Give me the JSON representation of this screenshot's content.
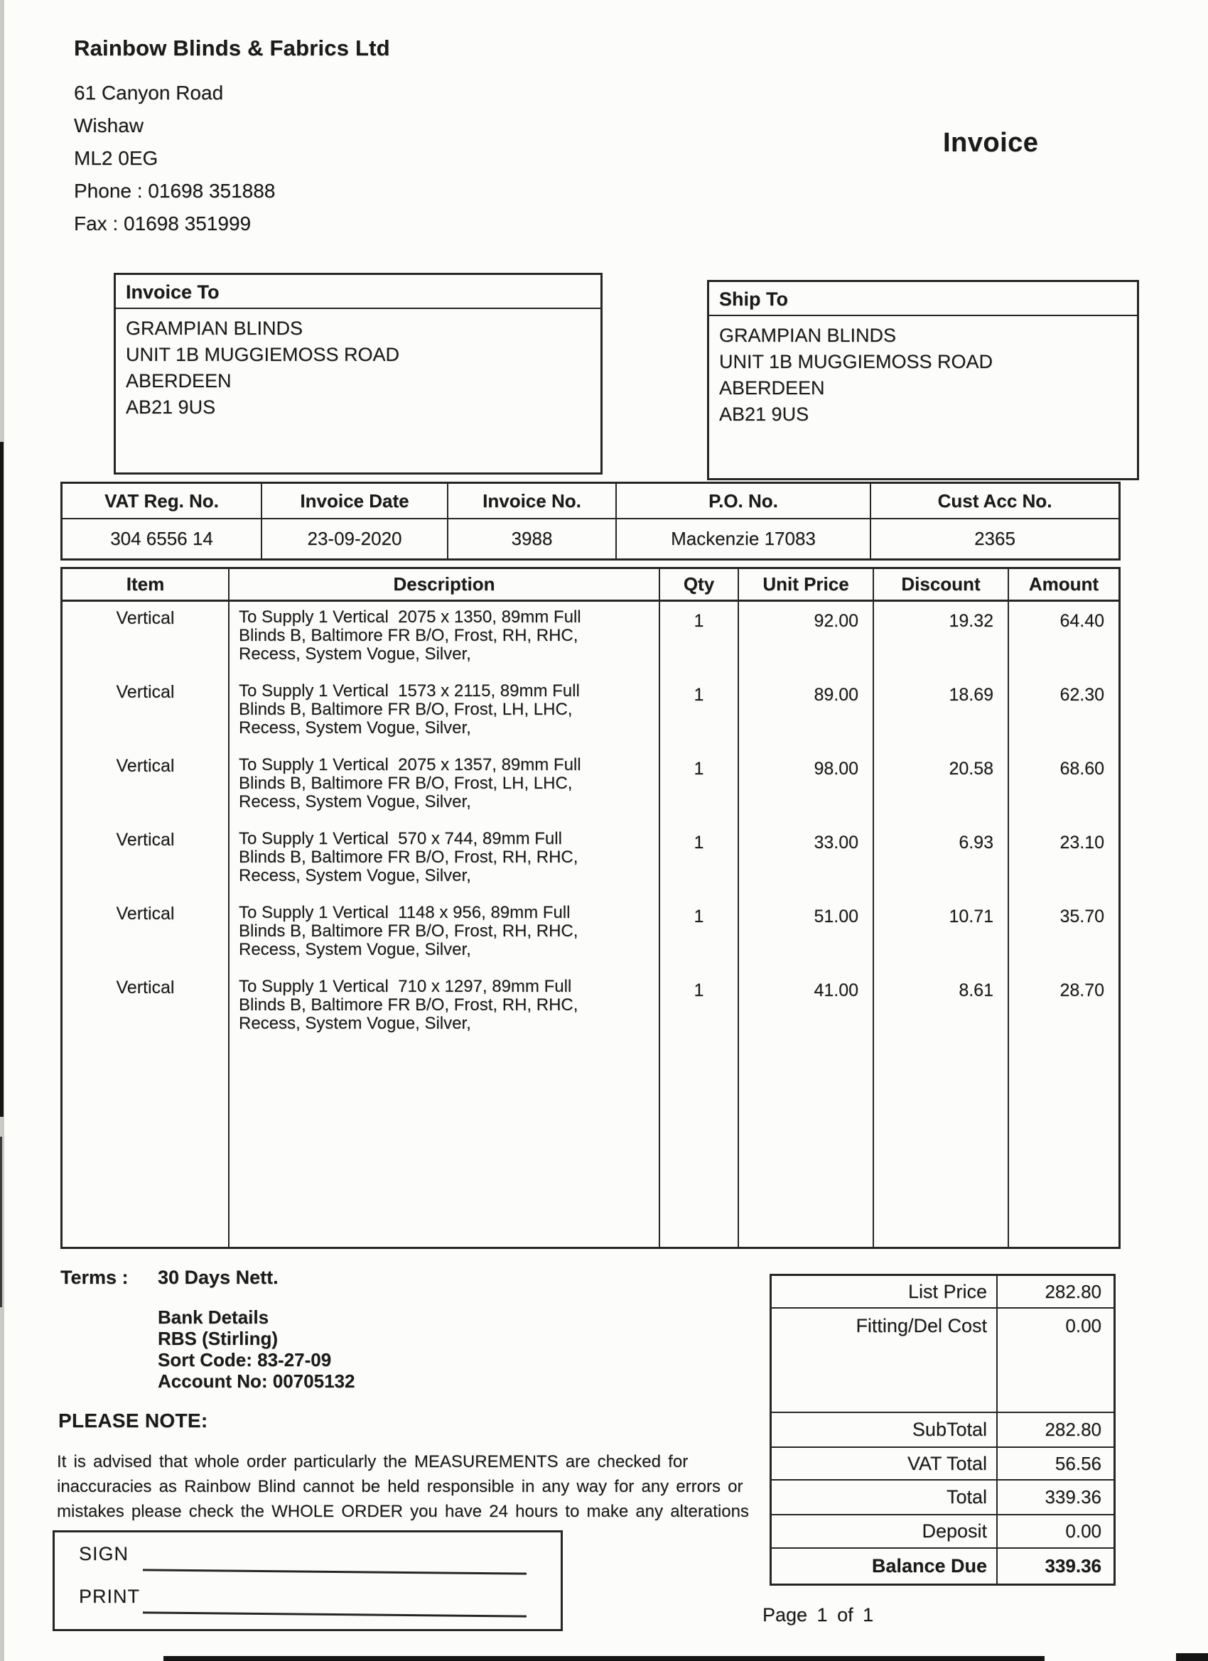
{
  "company": {
    "name": "Rainbow Blinds & Fabrics Ltd",
    "address_lines": [
      "61 Canyon Road",
      "Wishaw",
      "ML2 0EG",
      "Phone : 01698 351888",
      "Fax : 01698 351999"
    ]
  },
  "document": {
    "title": "Invoice",
    "page_label": "Page 1 of 1"
  },
  "invoice_to": {
    "heading": "Invoice To",
    "lines": [
      "GRAMPIAN BLINDS",
      "UNIT 1B MUGGIEMOSS ROAD",
      "ABERDEEN",
      "AB21 9US"
    ]
  },
  "ship_to": {
    "heading": "Ship To",
    "lines": [
      "GRAMPIAN BLINDS",
      "UNIT 1B MUGGIEMOSS ROAD",
      "ABERDEEN",
      "AB21 9US"
    ]
  },
  "meta": {
    "headers": [
      "VAT Reg. No.",
      "Invoice Date",
      "Invoice No.",
      "P.O. No.",
      "Cust Acc No."
    ],
    "values": [
      "304 6556 14",
      "23-09-2020",
      "3988",
      "Mackenzie 17083",
      "2365"
    ]
  },
  "items": {
    "headers": [
      "Item",
      "Description",
      "Qty",
      "Unit Price",
      "Discount",
      "Amount"
    ],
    "rows": [
      {
        "item": "Vertical",
        "description": "To Supply 1 Vertical  2075 x 1350, 89mm Full\nBlinds B, Baltimore FR B/O, Frost, RH, RHC,\nRecess, System Vogue, Silver,",
        "qty": "1",
        "unit_price": "92.00",
        "discount": "19.32",
        "amount": "64.40"
      },
      {
        "item": "Vertical",
        "description": "To Supply 1 Vertical  1573 x 2115, 89mm Full\nBlinds B, Baltimore FR B/O, Frost, LH, LHC,\nRecess, System Vogue, Silver,",
        "qty": "1",
        "unit_price": "89.00",
        "discount": "18.69",
        "amount": "62.30"
      },
      {
        "item": "Vertical",
        "description": "To Supply 1 Vertical  2075 x 1357, 89mm Full\nBlinds B, Baltimore FR B/O, Frost, LH, LHC,\nRecess, System Vogue, Silver,",
        "qty": "1",
        "unit_price": "98.00",
        "discount": "20.58",
        "amount": "68.60"
      },
      {
        "item": "Vertical",
        "description": "To Supply 1 Vertical  570 x 744, 89mm Full\nBlinds B, Baltimore FR B/O, Frost, RH, RHC,\nRecess, System Vogue, Silver,",
        "qty": "1",
        "unit_price": "33.00",
        "discount": "6.93",
        "amount": "23.10"
      },
      {
        "item": "Vertical",
        "description": "To Supply 1 Vertical  1148 x 956, 89mm Full\nBlinds B, Baltimore FR B/O, Frost, RH, RHC,\nRecess, System Vogue, Silver,",
        "qty": "1",
        "unit_price": "51.00",
        "discount": "10.71",
        "amount": "35.70"
      },
      {
        "item": "Vertical",
        "description": "To Supply 1 Vertical  710 x 1297, 89mm Full\nBlinds B, Baltimore FR B/O, Frost, RH, RHC,\nRecess, System Vogue, Silver,",
        "qty": "1",
        "unit_price": "41.00",
        "discount": "8.61",
        "amount": "28.70"
      }
    ]
  },
  "totals": {
    "rows": [
      {
        "label": "List Price",
        "value": "282.80"
      },
      {
        "label": "Fitting/Del Cost",
        "value": "0.00"
      },
      {
        "label": "SubTotal",
        "value": "282.80"
      },
      {
        "label": "VAT Total",
        "value": "56.56"
      },
      {
        "label": "Total",
        "value": "339.36"
      },
      {
        "label": "Deposit",
        "value": "0.00"
      },
      {
        "label": "Balance Due",
        "value": "339.36"
      }
    ]
  },
  "terms": {
    "label": "Terms :",
    "value": "30 Days Nett."
  },
  "bank": {
    "lines": [
      "Bank Details",
      "RBS (Stirling)",
      "Sort Code: 83-27-09",
      "Account No: 00705132"
    ]
  },
  "note": {
    "heading": "PLEASE NOTE:",
    "body": "It is advised that whole order particularly the MEASUREMENTS are checked for\ninaccuracies as Rainbow Blind cannot be held responsible in any way for any errors or\nmistakes please check the WHOLE ORDER you have 24 hours to make any alterations"
  },
  "signature": {
    "sign_label": "SIGN",
    "print_label": "PRINT"
  }
}
